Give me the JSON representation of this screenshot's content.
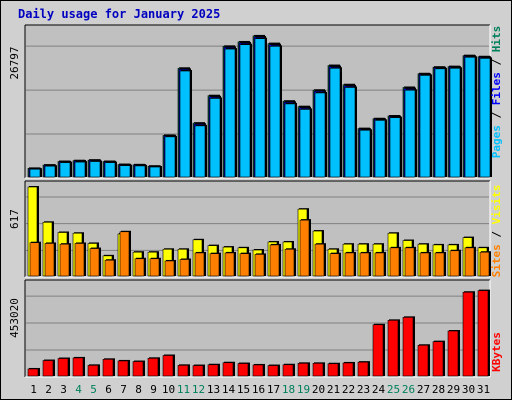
{
  "title": "Daily usage for January 2025",
  "colors": {
    "hits": "#00805c",
    "files": "#0000ff",
    "pages": "#00c0ff",
    "sites": "#ff8000",
    "visits": "#ffff00",
    "kbytes": "#ff0000",
    "weekend_day": "#00805c",
    "weekday": "#000000",
    "panel_bg": "#c0c0c0"
  },
  "legend": {
    "hits": "Hits",
    "files": "Files",
    "pages": "Pages",
    "sites": "Sites",
    "visits": "Visits",
    "kbytes": "KBytes",
    "separator": " / "
  },
  "chart_data": [
    {
      "type": "bar",
      "title": "Daily usage for January 2025",
      "ymax_label": "26797",
      "ylim": [
        0,
        26797
      ],
      "grid": true,
      "categories": [
        "1",
        "2",
        "3",
        "4",
        "5",
        "6",
        "7",
        "8",
        "9",
        "10",
        "11",
        "12",
        "13",
        "14",
        "15",
        "16",
        "17",
        "18",
        "19",
        "20",
        "21",
        "22",
        "23",
        "24",
        "25",
        "26",
        "27",
        "28",
        "29",
        "30",
        "31"
      ],
      "weekend_days": [
        "4",
        "5",
        "11",
        "12",
        "18",
        "19",
        "25",
        "26"
      ],
      "series": [
        {
          "name": "Hits",
          "values": [
            1750,
            2350,
            3000,
            3150,
            3250,
            3000,
            2450,
            2400,
            2150,
            7750,
            20000,
            10000,
            15000,
            24000,
            24800,
            25900,
            24500,
            14000,
            13000,
            16000,
            20500,
            17000,
            9000,
            10800,
            11300,
            16500,
            19000,
            20200,
            20300,
            22300,
            22100
          ]
        },
        {
          "name": "Files",
          "values": [
            1700,
            2300,
            2950,
            3100,
            3200,
            2950,
            2400,
            2350,
            2100,
            7700,
            19800,
            9800,
            14800,
            23800,
            24600,
            25700,
            24300,
            13800,
            12800,
            15800,
            20300,
            16800,
            8900,
            10700,
            11200,
            16300,
            18900,
            20100,
            20200,
            22200,
            22000
          ]
        },
        {
          "name": "Pages",
          "values": [
            1600,
            2150,
            2800,
            2900,
            3000,
            2800,
            2250,
            2200,
            2000,
            7500,
            19500,
            9500,
            14500,
            23500,
            24300,
            25400,
            24000,
            13500,
            12500,
            15500,
            20000,
            16500,
            8700,
            10500,
            11000,
            16000,
            18700,
            19900,
            20000,
            22000,
            21800
          ]
        }
      ]
    },
    {
      "type": "bar",
      "ymax_label": "617",
      "ylim": [
        0,
        617
      ],
      "grid": true,
      "categories": [
        "1",
        "2",
        "3",
        "4",
        "5",
        "6",
        "7",
        "8",
        "9",
        "10",
        "11",
        "12",
        "13",
        "14",
        "15",
        "16",
        "17",
        "18",
        "19",
        "20",
        "21",
        "22",
        "23",
        "24",
        "25",
        "26",
        "27",
        "28",
        "29",
        "30",
        "31"
      ],
      "series": [
        {
          "name": "Visits",
          "values": [
            617,
            375,
            305,
            300,
            230,
            145,
            295,
            170,
            170,
            190,
            190,
            255,
            215,
            205,
            200,
            185,
            240,
            240,
            465,
            315,
            190,
            225,
            225,
            225,
            300,
            250,
            225,
            220,
            220,
            270,
            200
          ]
        },
        {
          "name": "Sites",
          "values": [
            235,
            230,
            225,
            230,
            195,
            115,
            310,
            125,
            125,
            110,
            120,
            165,
            160,
            165,
            160,
            155,
            220,
            190,
            390,
            225,
            160,
            165,
            165,
            165,
            200,
            200,
            165,
            165,
            180,
            200,
            170
          ]
        }
      ]
    },
    {
      "type": "bar",
      "ymax_label": "453020",
      "ylim": [
        0,
        453020
      ],
      "grid": true,
      "categories": [
        "1",
        "2",
        "3",
        "4",
        "5",
        "6",
        "7",
        "8",
        "9",
        "10",
        "11",
        "12",
        "13",
        "14",
        "15",
        "16",
        "17",
        "18",
        "19",
        "20",
        "21",
        "22",
        "23",
        "24",
        "25",
        "26",
        "27",
        "28",
        "29",
        "30",
        "31"
      ],
      "series": [
        {
          "name": "KBytes",
          "values": [
            40000,
            82000,
            92000,
            95000,
            58000,
            88000,
            80000,
            77000,
            93000,
            107000,
            58000,
            57000,
            61000,
            71000,
            67000,
            60000,
            57000,
            61000,
            68000,
            68000,
            66000,
            70000,
            74000,
            260000,
            282000,
            297000,
            158000,
            176000,
            229000,
            422000,
            430000
          ]
        }
      ]
    }
  ]
}
